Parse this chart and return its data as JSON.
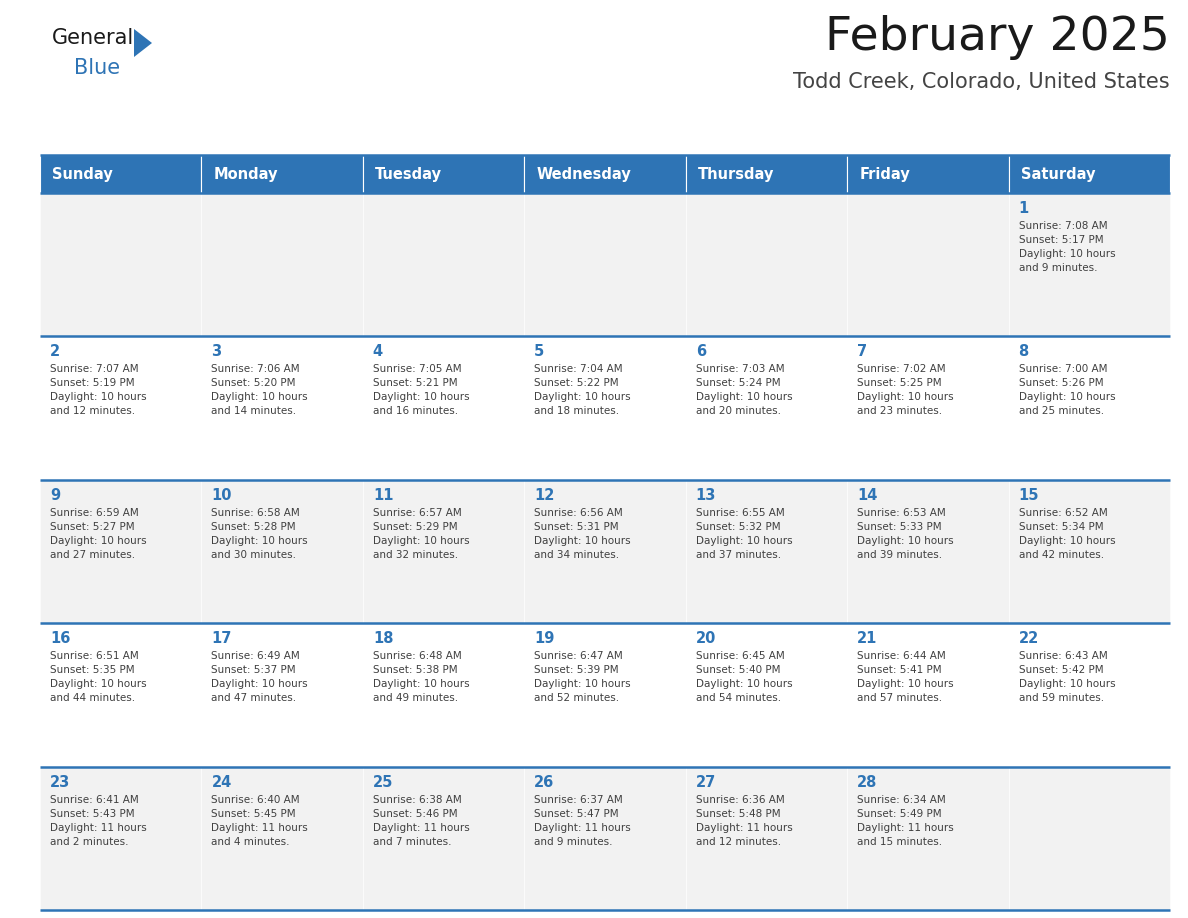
{
  "title": "February 2025",
  "subtitle": "Todd Creek, Colorado, United States",
  "header_color": "#2E74B5",
  "header_text_color": "#FFFFFF",
  "cell_bg_color_even": "#F2F2F2",
  "cell_bg_color_odd": "#FFFFFF",
  "day_number_color": "#2E74B5",
  "info_text_color": "#404040",
  "border_color": "#2E74B5",
  "days_of_week": [
    "Sunday",
    "Monday",
    "Tuesday",
    "Wednesday",
    "Thursday",
    "Friday",
    "Saturday"
  ],
  "weeks": [
    [
      {
        "day": null,
        "info": null
      },
      {
        "day": null,
        "info": null
      },
      {
        "day": null,
        "info": null
      },
      {
        "day": null,
        "info": null
      },
      {
        "day": null,
        "info": null
      },
      {
        "day": null,
        "info": null
      },
      {
        "day": "1",
        "info": "Sunrise: 7:08 AM\nSunset: 5:17 PM\nDaylight: 10 hours\nand 9 minutes."
      }
    ],
    [
      {
        "day": "2",
        "info": "Sunrise: 7:07 AM\nSunset: 5:19 PM\nDaylight: 10 hours\nand 12 minutes."
      },
      {
        "day": "3",
        "info": "Sunrise: 7:06 AM\nSunset: 5:20 PM\nDaylight: 10 hours\nand 14 minutes."
      },
      {
        "day": "4",
        "info": "Sunrise: 7:05 AM\nSunset: 5:21 PM\nDaylight: 10 hours\nand 16 minutes."
      },
      {
        "day": "5",
        "info": "Sunrise: 7:04 AM\nSunset: 5:22 PM\nDaylight: 10 hours\nand 18 minutes."
      },
      {
        "day": "6",
        "info": "Sunrise: 7:03 AM\nSunset: 5:24 PM\nDaylight: 10 hours\nand 20 minutes."
      },
      {
        "day": "7",
        "info": "Sunrise: 7:02 AM\nSunset: 5:25 PM\nDaylight: 10 hours\nand 23 minutes."
      },
      {
        "day": "8",
        "info": "Sunrise: 7:00 AM\nSunset: 5:26 PM\nDaylight: 10 hours\nand 25 minutes."
      }
    ],
    [
      {
        "day": "9",
        "info": "Sunrise: 6:59 AM\nSunset: 5:27 PM\nDaylight: 10 hours\nand 27 minutes."
      },
      {
        "day": "10",
        "info": "Sunrise: 6:58 AM\nSunset: 5:28 PM\nDaylight: 10 hours\nand 30 minutes."
      },
      {
        "day": "11",
        "info": "Sunrise: 6:57 AM\nSunset: 5:29 PM\nDaylight: 10 hours\nand 32 minutes."
      },
      {
        "day": "12",
        "info": "Sunrise: 6:56 AM\nSunset: 5:31 PM\nDaylight: 10 hours\nand 34 minutes."
      },
      {
        "day": "13",
        "info": "Sunrise: 6:55 AM\nSunset: 5:32 PM\nDaylight: 10 hours\nand 37 minutes."
      },
      {
        "day": "14",
        "info": "Sunrise: 6:53 AM\nSunset: 5:33 PM\nDaylight: 10 hours\nand 39 minutes."
      },
      {
        "day": "15",
        "info": "Sunrise: 6:52 AM\nSunset: 5:34 PM\nDaylight: 10 hours\nand 42 minutes."
      }
    ],
    [
      {
        "day": "16",
        "info": "Sunrise: 6:51 AM\nSunset: 5:35 PM\nDaylight: 10 hours\nand 44 minutes."
      },
      {
        "day": "17",
        "info": "Sunrise: 6:49 AM\nSunset: 5:37 PM\nDaylight: 10 hours\nand 47 minutes."
      },
      {
        "day": "18",
        "info": "Sunrise: 6:48 AM\nSunset: 5:38 PM\nDaylight: 10 hours\nand 49 minutes."
      },
      {
        "day": "19",
        "info": "Sunrise: 6:47 AM\nSunset: 5:39 PM\nDaylight: 10 hours\nand 52 minutes."
      },
      {
        "day": "20",
        "info": "Sunrise: 6:45 AM\nSunset: 5:40 PM\nDaylight: 10 hours\nand 54 minutes."
      },
      {
        "day": "21",
        "info": "Sunrise: 6:44 AM\nSunset: 5:41 PM\nDaylight: 10 hours\nand 57 minutes."
      },
      {
        "day": "22",
        "info": "Sunrise: 6:43 AM\nSunset: 5:42 PM\nDaylight: 10 hours\nand 59 minutes."
      }
    ],
    [
      {
        "day": "23",
        "info": "Sunrise: 6:41 AM\nSunset: 5:43 PM\nDaylight: 11 hours\nand 2 minutes."
      },
      {
        "day": "24",
        "info": "Sunrise: 6:40 AM\nSunset: 5:45 PM\nDaylight: 11 hours\nand 4 minutes."
      },
      {
        "day": "25",
        "info": "Sunrise: 6:38 AM\nSunset: 5:46 PM\nDaylight: 11 hours\nand 7 minutes."
      },
      {
        "day": "26",
        "info": "Sunrise: 6:37 AM\nSunset: 5:47 PM\nDaylight: 11 hours\nand 9 minutes."
      },
      {
        "day": "27",
        "info": "Sunrise: 6:36 AM\nSunset: 5:48 PM\nDaylight: 11 hours\nand 12 minutes."
      },
      {
        "day": "28",
        "info": "Sunrise: 6:34 AM\nSunset: 5:49 PM\nDaylight: 11 hours\nand 15 minutes."
      },
      {
        "day": null,
        "info": null
      }
    ]
  ],
  "logo_color_general": "#1a1a1a",
  "logo_color_blue": "#2E74B5",
  "title_color": "#1a1a1a",
  "subtitle_color": "#444444",
  "fig_width": 11.88,
  "fig_height": 9.18,
  "dpi": 100
}
